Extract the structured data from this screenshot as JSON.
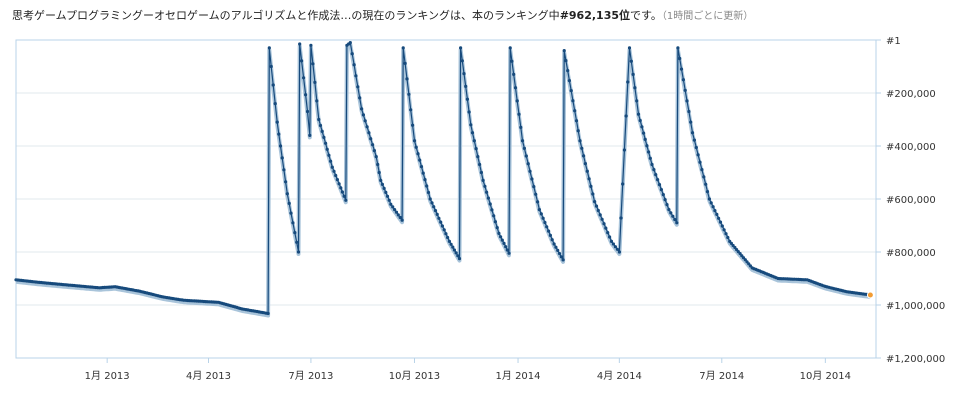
{
  "heading": {
    "prefix": "思考ゲームプログラミングーオセロゲームのアルゴリズムと作成法…の現在のランキングは、本のランキング中",
    "rank": "#962,135位",
    "suffix": "です。",
    "note": "（1時間ごとに更新）"
  },
  "colors": {
    "line": "#174a7c",
    "marker": "#174a7c",
    "shadow": "#a9c4da",
    "current": "#f29c33",
    "grid": "#e2e8ee",
    "frame": "#b9d3e8"
  },
  "chart_data": {
    "type": "line",
    "title": "",
    "xlabel": "",
    "ylabel": "",
    "y_inverted": true,
    "ylim": [
      1,
      1200000
    ],
    "xlim": [
      "2012-10-12",
      "2014-11-15"
    ],
    "grid": true,
    "y_ticks": [
      {
        "value": 1,
        "label": "#1"
      },
      {
        "value": 200000,
        "label": "#200,000"
      },
      {
        "value": 400000,
        "label": "#400,000"
      },
      {
        "value": 600000,
        "label": "#600,000"
      },
      {
        "value": 800000,
        "label": "#800,000"
      },
      {
        "value": 1000000,
        "label": "#1,000,000"
      },
      {
        "value": 1200000,
        "label": "#1,200,000"
      }
    ],
    "x_ticks": [
      {
        "date": "2013-01-01",
        "label": "1月 2013"
      },
      {
        "date": "2013-04-01",
        "label": "4月 2013"
      },
      {
        "date": "2013-07-01",
        "label": "7月 2013"
      },
      {
        "date": "2013-10-01",
        "label": "10月 2013"
      },
      {
        "date": "2014-01-01",
        "label": "1月 2014"
      },
      {
        "date": "2014-04-01",
        "label": "4月 2014"
      },
      {
        "date": "2014-07-01",
        "label": "7月 2014"
      },
      {
        "date": "2014-10-01",
        "label": "10月 2014"
      }
    ],
    "series": [
      {
        "points": [
          [
            "2012-10-12",
            905000
          ],
          [
            "2012-11-05",
            916000
          ],
          [
            "2012-12-01",
            926000
          ],
          [
            "2012-12-25",
            935000
          ],
          [
            "2013-01-08",
            931000
          ],
          [
            "2013-01-30",
            948000
          ],
          [
            "2013-02-20",
            970000
          ],
          [
            "2013-03-10",
            982000
          ],
          [
            "2013-04-10",
            990000
          ],
          [
            "2013-05-01",
            1015000
          ],
          [
            "2013-05-24",
            1032000
          ],
          [
            "2013-05-25",
            30000
          ],
          [
            "2013-06-01",
            310000
          ],
          [
            "2013-06-10",
            580000
          ],
          [
            "2013-06-20",
            800000
          ],
          [
            "2013-06-21",
            15000
          ],
          [
            "2013-06-28",
            270000
          ],
          [
            "2013-06-30",
            360000
          ],
          [
            "2013-07-01",
            20000
          ],
          [
            "2013-07-08",
            300000
          ],
          [
            "2013-07-20",
            480000
          ],
          [
            "2013-08-01",
            605000
          ],
          [
            "2013-08-02",
            20000
          ],
          [
            "2013-08-05",
            10000
          ],
          [
            "2013-08-15",
            260000
          ],
          [
            "2013-08-28",
            440000
          ],
          [
            "2013-09-01",
            530000
          ],
          [
            "2013-09-10",
            620000
          ],
          [
            "2013-09-20",
            680000
          ],
          [
            "2013-09-21",
            30000
          ],
          [
            "2013-10-01",
            380000
          ],
          [
            "2013-10-15",
            600000
          ],
          [
            "2013-11-01",
            760000
          ],
          [
            "2013-11-10",
            825000
          ],
          [
            "2013-11-11",
            30000
          ],
          [
            "2013-11-20",
            320000
          ],
          [
            "2013-12-01",
            530000
          ],
          [
            "2013-12-15",
            730000
          ],
          [
            "2013-12-24",
            805000
          ],
          [
            "2013-12-25",
            30000
          ],
          [
            "2014-01-05",
            380000
          ],
          [
            "2014-01-20",
            640000
          ],
          [
            "2014-02-02",
            770000
          ],
          [
            "2014-02-10",
            830000
          ],
          [
            "2014-02-11",
            40000
          ],
          [
            "2014-02-25",
            380000
          ],
          [
            "2014-03-10",
            610000
          ],
          [
            "2014-03-25",
            760000
          ],
          [
            "2014-04-01",
            800000
          ],
          [
            "2014-04-10",
            30000
          ],
          [
            "2014-04-18",
            280000
          ],
          [
            "2014-04-30",
            470000
          ],
          [
            "2014-05-15",
            640000
          ],
          [
            "2014-05-22",
            690000
          ],
          [
            "2014-05-23",
            30000
          ],
          [
            "2014-06-05",
            350000
          ],
          [
            "2014-06-20",
            600000
          ],
          [
            "2014-07-08",
            760000
          ],
          [
            "2014-07-28",
            860000
          ],
          [
            "2014-08-20",
            900000
          ],
          [
            "2014-09-15",
            905000
          ],
          [
            "2014-10-01",
            930000
          ],
          [
            "2014-10-20",
            950000
          ],
          [
            "2014-11-10",
            962000
          ]
        ]
      }
    ],
    "current_point": [
      "2014-11-10",
      962135
    ]
  }
}
